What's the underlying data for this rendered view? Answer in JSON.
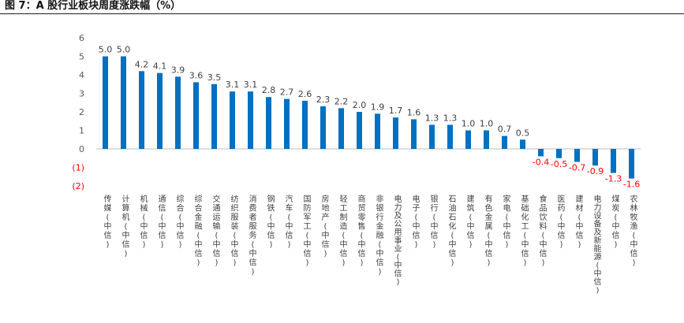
{
  "figure": {
    "title": "图 7：A 股行业板块周度涨跌幅（%）"
  },
  "colors": {
    "bar": "#0070C0",
    "positive_label": "#404040",
    "negative_label": "#FF0000",
    "axis_text": "#595959",
    "axis_line": "#BFBFBF"
  },
  "chart_data": {
    "type": "bar",
    "title": "",
    "xlabel": "",
    "ylabel": "",
    "ylim": [
      -2,
      6
    ],
    "yticks": [
      6,
      5,
      4,
      3,
      2,
      1,
      0,
      -1,
      -2
    ],
    "ytick_labels": [
      "6",
      "5",
      "4",
      "3",
      "2",
      "1",
      "0",
      "(1)",
      "(2)"
    ],
    "grid": false,
    "legend": "none",
    "categories": [
      "传媒(中信)",
      "计算机(中信)",
      "机械(中信)",
      "通信(中信)",
      "综合(中信)",
      "综合金融(中信)",
      "交通运输(中信)",
      "纺织服装(中信)",
      "消费者服务(中信)",
      "钢铁(中信)",
      "汽车(中信)",
      "国防军工(中信)",
      "房地产(中信)",
      "轻工制造(中信)",
      "商贸零售(中信)",
      "非银行金融(中信)",
      "电力及公用事业(中信)",
      "电子(中信)",
      "银行(中信)",
      "石油石化(中信)",
      "建筑(中信)",
      "有色金属(中信)",
      "家电(中信)",
      "基础化工(中信)",
      "食品饮料(中信)",
      "医药(中信)",
      "建材(中信)",
      "电力设备及新能源(中信)",
      "煤炭(中信)",
      "农林牧渔(中信)"
    ],
    "values": [
      5.0,
      5.0,
      4.2,
      4.1,
      3.9,
      3.6,
      3.5,
      3.1,
      3.1,
      2.8,
      2.7,
      2.6,
      2.3,
      2.2,
      2.0,
      1.9,
      1.7,
      1.6,
      1.3,
      1.3,
      1.0,
      1.0,
      0.7,
      0.5,
      -0.4,
      -0.5,
      -0.7,
      -0.9,
      -1.3,
      -1.6
    ],
    "value_labels": [
      "5.0",
      "5.0",
      "4.2",
      "4.1",
      "3.9",
      "3.6",
      "3.5",
      "3.1",
      "3.1",
      "2.8",
      "2.7",
      "2.6",
      "2.3",
      "2.2",
      "2.0",
      "1.9",
      "1.7",
      "1.6",
      "1.3",
      "1.3",
      "1.0",
      "1.0",
      "0.7",
      "0.5",
      "-0.4",
      "-0.5",
      "-0.7",
      "-0.9",
      "-1.3",
      "-1.6"
    ]
  }
}
